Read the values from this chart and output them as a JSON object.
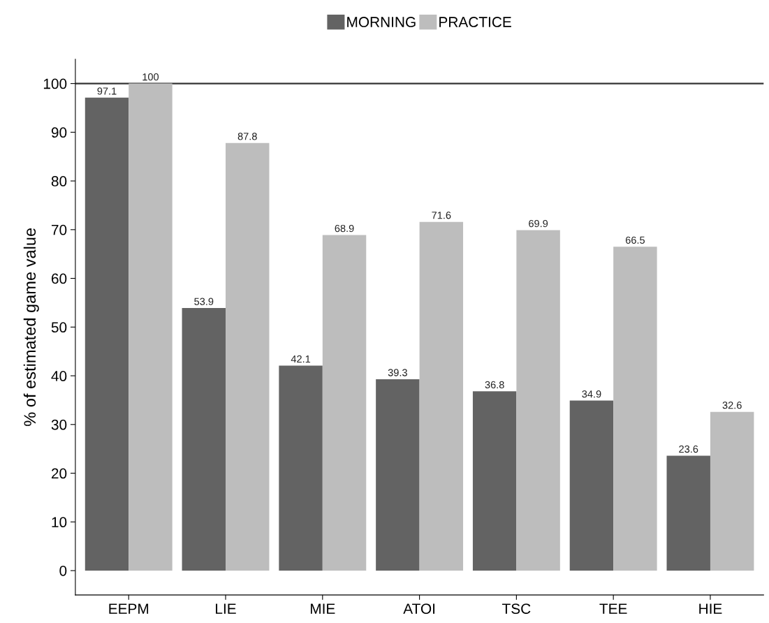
{
  "chart_data": {
    "type": "bar",
    "ylabel": "% of estimated game value",
    "categories": [
      "EEPM",
      "LIE",
      "MIE",
      "ATOI",
      "TSC",
      "TEE",
      "HIE"
    ],
    "series": [
      {
        "name": "MORNING",
        "color": "#636363",
        "values": [
          97.1,
          53.9,
          42.1,
          39.3,
          36.8,
          34.9,
          23.6
        ]
      },
      {
        "name": "PRACTICE",
        "color": "#bdbdbd",
        "values": [
          100,
          87.8,
          68.9,
          71.6,
          69.9,
          66.5,
          32.6
        ]
      }
    ],
    "ylim": [
      -5,
      105
    ],
    "yticks": [
      0,
      10,
      20,
      30,
      40,
      50,
      60,
      70,
      80,
      90,
      100
    ],
    "ref_lines": [
      {
        "axis": "y",
        "value": 100,
        "color": "#333333"
      }
    ],
    "data_labels": true,
    "legend": "top",
    "grid": false
  }
}
